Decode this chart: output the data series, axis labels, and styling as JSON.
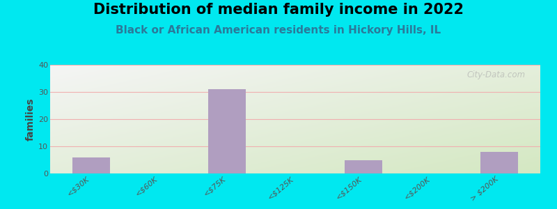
{
  "title": "Distribution of median family income in 2022",
  "subtitle": "Black or African American residents in Hickory Hills, IL",
  "categories": [
    "<$30K",
    "<$60K",
    "<$75K",
    "<$125K",
    "<$150K",
    "<$200K",
    "> $200K"
  ],
  "values": [
    6,
    0,
    31,
    0,
    5,
    0,
    8
  ],
  "bar_color": "#b09ec0",
  "background_outer": "#00e8f0",
  "background_chart_topleft": "#f5f5f5",
  "background_chart_bottomright": "#d4e8c2",
  "grid_color": "#f0b0b0",
  "ylabel": "families",
  "ylim": [
    0,
    40
  ],
  "yticks": [
    0,
    10,
    20,
    30,
    40
  ],
  "title_fontsize": 15,
  "subtitle_fontsize": 11,
  "tick_label_fontsize": 8,
  "watermark": "City-Data.com",
  "watermark_color": "#aaaaaa"
}
